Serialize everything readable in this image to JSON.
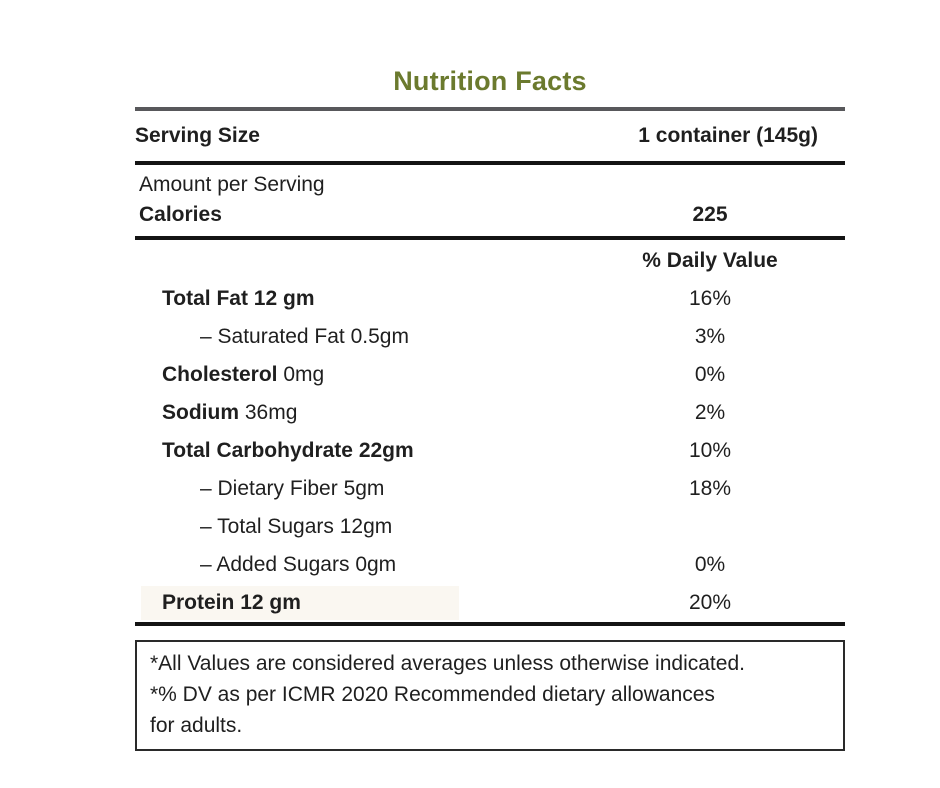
{
  "title": "Nutrition Facts",
  "colors": {
    "accent_green": "#6B7A2E",
    "rule_gray": "#58585B",
    "rule_black": "#141414",
    "protein_highlight": "#FAF7F1"
  },
  "serving": {
    "label": "Serving Size",
    "value": "1 container (145g)"
  },
  "amount_per_serving": "Amount per Serving",
  "calories": {
    "label": "Calories",
    "value": "225"
  },
  "daily_value_header": "% Daily Value",
  "rows": [
    {
      "prefix": "",
      "name": "Total Fat",
      "amount": "12 gm",
      "dv": "16%"
    },
    {
      "prefix": "– ",
      "name": "Saturated Fat",
      "amount": "0.5gm",
      "dv": "3%"
    },
    {
      "prefix": "",
      "name": "Cholesterol",
      "amount": "0mg",
      "dv": "0%"
    },
    {
      "prefix": "",
      "name": "Sodium",
      "amount": "36mg",
      "dv": "2%"
    },
    {
      "prefix": "",
      "name": "Total Carbohydrate",
      "amount": "22gm",
      "dv": "10%"
    },
    {
      "prefix": "– ",
      "name": "Dietary Fiber",
      "amount": "5gm",
      "dv": "18%"
    },
    {
      "prefix": "– ",
      "name": "Total Sugars",
      "amount": "12gm",
      "dv": ""
    },
    {
      "prefix": "– ",
      "name": "Added Sugars",
      "amount": "0gm",
      "dv": "0%"
    },
    {
      "prefix": "",
      "name": "Protein",
      "amount": "12 gm",
      "dv": "20%"
    }
  ],
  "footnotes": [
    "*All Values are considered averages unless otherwise indicated.",
    "*% DV as per ICMR 2020 Recommended dietary allowances",
    "for adults."
  ]
}
